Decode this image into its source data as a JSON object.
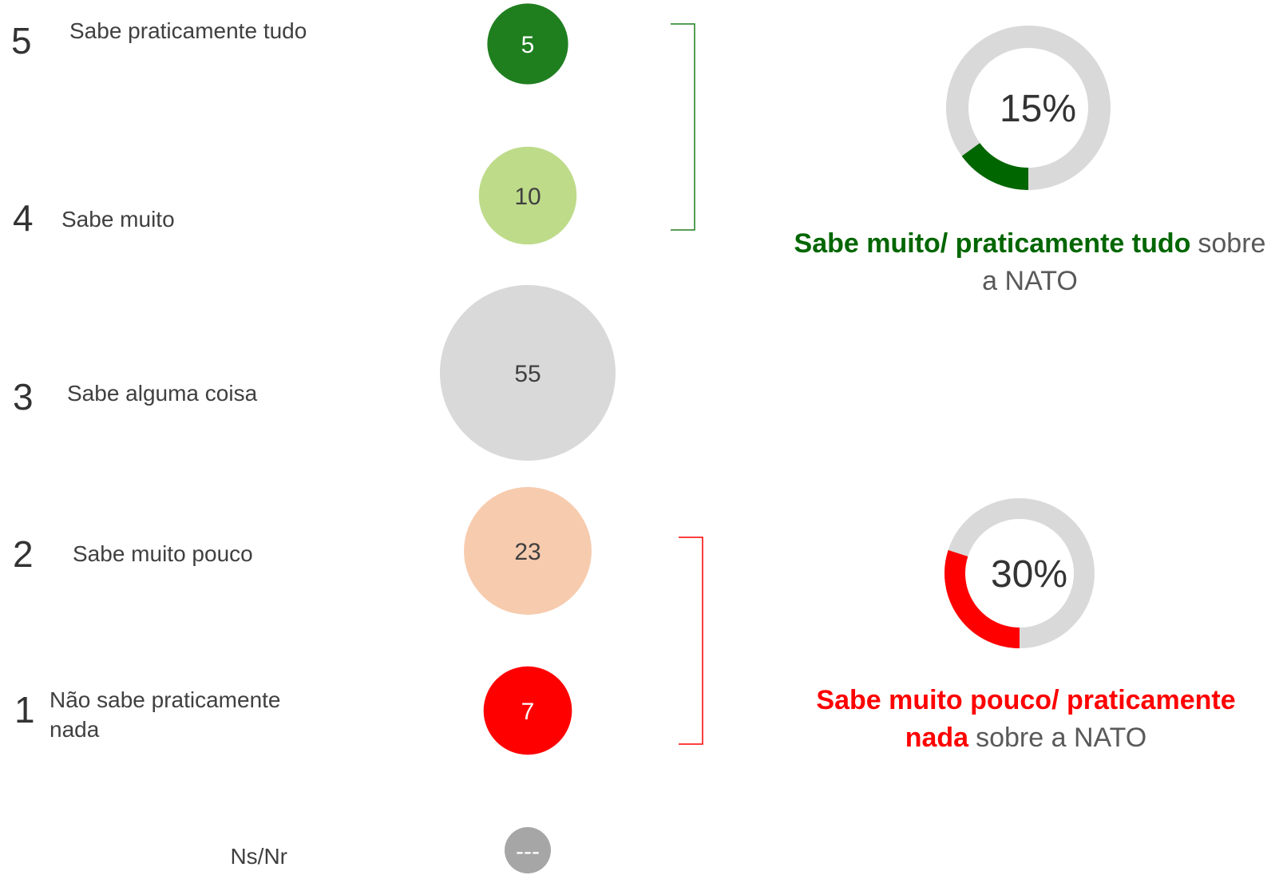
{
  "chart_data": [
    {
      "type": "bubble",
      "codes": [
        5,
        4,
        3,
        2,
        1,
        null
      ],
      "categories": [
        "Sabe praticamente tudo",
        "Sabe muito",
        "Sabe alguma coisa",
        "Sabe muito pouco",
        "Não sabe praticamente nada",
        "Ns/Nr"
      ],
      "values": [
        5,
        10,
        55,
        23,
        7,
        null
      ],
      "value_labels": [
        "5",
        "10",
        "55",
        "23",
        "7",
        "---"
      ],
      "colors": [
        "#1f7f1f",
        "#bedb8a",
        "#d9d9d9",
        "#f7cbae",
        "#ff0000",
        "#a6a6a6"
      ]
    },
    {
      "type": "donut",
      "values": [
        15
      ],
      "value_labels": [
        "15%"
      ],
      "color": "#006600",
      "track_color": "#d9d9d9",
      "caption": {
        "bold": "Sabe muito/ praticamente tudo",
        "normal": "sobre a NATO"
      }
    },
    {
      "type": "donut",
      "values": [
        30
      ],
      "value_labels": [
        "30%"
      ],
      "color": "#ff0000",
      "track_color": "#d9d9d9",
      "caption": {
        "bold": "Sabe muito pouco/ praticamente nada",
        "normal": "sobre a NATO"
      }
    }
  ]
}
